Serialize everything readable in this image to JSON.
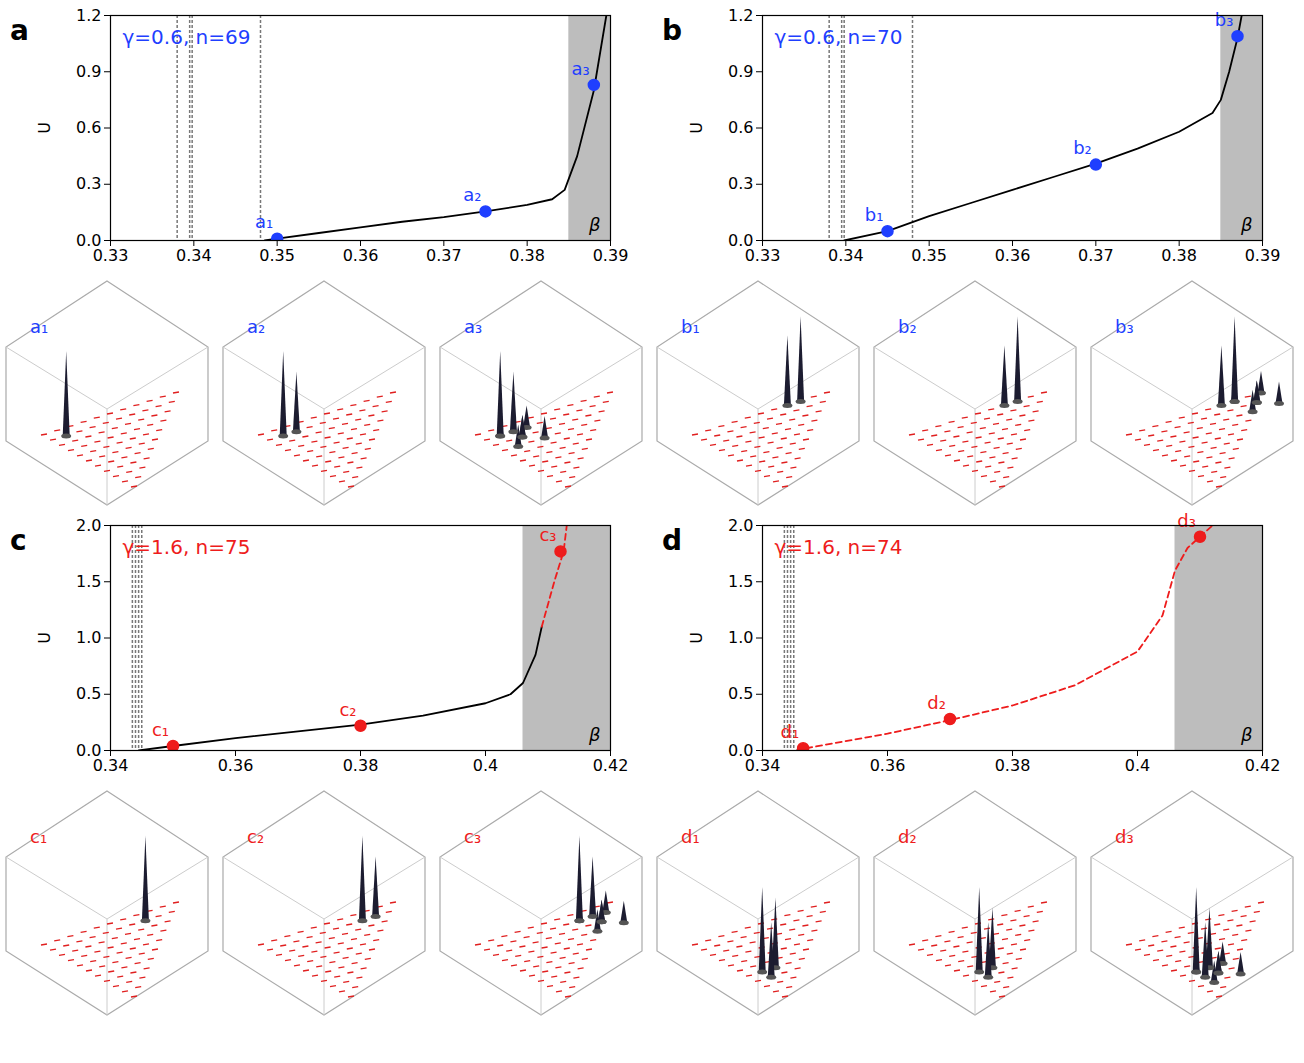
{
  "chart_data": [
    {
      "type": "line",
      "panel_label": "a",
      "title": "γ=0.6, n=69",
      "color": "#1f3fff",
      "ylabel": "U",
      "xlim": [
        0.33,
        0.39
      ],
      "xticks": [
        0.33,
        0.34,
        0.35,
        0.36,
        0.37,
        0.38,
        0.39
      ],
      "ylim": [
        0,
        1.2
      ],
      "yticks": [
        {
          "value": 0,
          "label": "0.0"
        },
        {
          "value": 0.3,
          "label": "0.3"
        },
        {
          "value": 0.6,
          "label": "0.6"
        },
        {
          "value": 0.9,
          "label": "0.9"
        },
        {
          "value": 1.2,
          "label": "1.2"
        }
      ],
      "vlines": [
        0.338,
        0.3395,
        0.3398,
        0.348
      ],
      "shaded": {
        "x": [
          0.385,
          0.39
        ],
        "label": "β"
      },
      "series": [
        {
          "color": "#000000",
          "line_style": "solid",
          "x": [
            0.3485,
            0.35,
            0.355,
            0.36,
            0.365,
            0.37,
            0.375,
            0.38,
            0.383,
            0.3845,
            0.386,
            0.388,
            0.3895
          ],
          "values": [
            0,
            0.01,
            0.04,
            0.07,
            0.1,
            0.125,
            0.155,
            0.19,
            0.22,
            0.27,
            0.45,
            0.8,
            1.2
          ]
        }
      ],
      "points": {
        "x": [
          0.35,
          0.375,
          0.388
        ],
        "values": [
          0.01,
          0.155,
          0.83
        ],
        "labels": [
          "a₁",
          "a₂",
          "a₃"
        ]
      },
      "inset_labels": [
        "a₁",
        "a₂",
        "a₃"
      ]
    },
    {
      "type": "line",
      "panel_label": "b",
      "title": "γ=0.6, n=70",
      "color": "#1f3fff",
      "ylabel": "U",
      "xlim": [
        0.33,
        0.39
      ],
      "xticks": [
        0.33,
        0.34,
        0.35,
        0.36,
        0.37,
        0.38,
        0.39
      ],
      "ylim": [
        0,
        1.2
      ],
      "yticks": [
        {
          "value": 0,
          "label": "0.0"
        },
        {
          "value": 0.3,
          "label": "0.3"
        },
        {
          "value": 0.6,
          "label": "0.6"
        },
        {
          "value": 0.9,
          "label": "0.9"
        },
        {
          "value": 1.2,
          "label": "1.2"
        }
      ],
      "vlines": [
        0.338,
        0.3395,
        0.3398,
        0.348
      ],
      "shaded": {
        "x": [
          0.385,
          0.39
        ],
        "label": "β"
      },
      "series": [
        {
          "color": "#000000",
          "line_style": "solid",
          "x": [
            0.3398,
            0.345,
            0.35,
            0.355,
            0.36,
            0.365,
            0.37,
            0.375,
            0.38,
            0.384,
            0.385,
            0.386,
            0.387,
            0.3875
          ],
          "values": [
            0,
            0.05,
            0.13,
            0.2,
            0.27,
            0.34,
            0.41,
            0.49,
            0.58,
            0.68,
            0.75,
            0.9,
            1.08,
            1.2
          ]
        }
      ],
      "points": {
        "x": [
          0.345,
          0.37,
          0.387
        ],
        "values": [
          0.05,
          0.405,
          1.09
        ],
        "labels": [
          "b₁",
          "b₂",
          "b₃"
        ]
      },
      "inset_labels": [
        "b₁",
        "b₂",
        "b₃"
      ]
    },
    {
      "type": "line",
      "panel_label": "c",
      "title": "γ=1.6, n=75",
      "color": "#ee1c1c",
      "ylabel": "U",
      "xlim": [
        0.34,
        0.42
      ],
      "xticks": [
        0.34,
        0.36,
        0.38,
        0.4,
        0.42
      ],
      "ylim": [
        0,
        2
      ],
      "yticks": [
        {
          "value": 0,
          "label": "0.0"
        },
        {
          "value": 0.5,
          "label": "0.5"
        },
        {
          "value": 1,
          "label": "1.0"
        },
        {
          "value": 1.5,
          "label": "1.5"
        },
        {
          "value": 2,
          "label": "2.0"
        }
      ],
      "vlines": [
        0.3435,
        0.344,
        0.3445,
        0.345
      ],
      "shaded": {
        "x": [
          0.406,
          0.42
        ],
        "label": "β"
      },
      "series": [
        {
          "color": "#000000",
          "line_style": "solid",
          "x": [
            0.3445,
            0.35,
            0.36,
            0.37,
            0.38,
            0.39,
            0.4,
            0.404,
            0.406,
            0.408,
            0.409
          ],
          "values": [
            0,
            0.04,
            0.11,
            0.17,
            0.23,
            0.31,
            0.42,
            0.5,
            0.6,
            0.85,
            1.1
          ]
        },
        {
          "color": "#ee1c1c",
          "line_style": "dashed",
          "x": [
            0.409,
            0.411,
            0.4125,
            0.413
          ],
          "values": [
            1.1,
            1.5,
            1.77,
            2.0
          ]
        }
      ],
      "points": {
        "x": [
          0.35,
          0.38,
          0.412
        ],
        "values": [
          0.04,
          0.22,
          1.77
        ],
        "labels": [
          "c₁",
          "c₂",
          "c₃"
        ]
      },
      "inset_labels": [
        "c₁",
        "c₂",
        "c₃"
      ]
    },
    {
      "type": "line",
      "panel_label": "d",
      "title": "γ=1.6, n=74",
      "color": "#ee1c1c",
      "ylabel": "U",
      "xlim": [
        0.34,
        0.42
      ],
      "xticks": [
        0.34,
        0.36,
        0.38,
        0.4,
        0.42
      ],
      "ylim": [
        0,
        2
      ],
      "yticks": [
        {
          "value": 0,
          "label": "0.0"
        },
        {
          "value": 0.5,
          "label": "0.5"
        },
        {
          "value": 1,
          "label": "1.0"
        },
        {
          "value": 1.5,
          "label": "1.5"
        },
        {
          "value": 2,
          "label": "2.0"
        }
      ],
      "vlines": [
        0.3435,
        0.344,
        0.3445,
        0.345
      ],
      "shaded": {
        "x": [
          0.406,
          0.42
        ],
        "label": "β"
      },
      "series": [
        {
          "color": "#000000",
          "line_style": "solid",
          "x": [
            0.3455,
            0.347
          ],
          "values": [
            0,
            0.02
          ]
        },
        {
          "color": "#ee1c1c",
          "line_style": "dashed",
          "x": [
            0.347,
            0.35,
            0.36,
            0.37,
            0.38,
            0.39,
            0.4,
            0.404,
            0.406,
            0.408,
            0.41,
            0.412
          ],
          "values": [
            0.02,
            0.05,
            0.15,
            0.27,
            0.4,
            0.58,
            0.88,
            1.2,
            1.6,
            1.8,
            1.9,
            2.0
          ]
        }
      ],
      "points": {
        "x": [
          0.3465,
          0.37,
          0.41
        ],
        "values": [
          0.02,
          0.28,
          1.9
        ],
        "labels": [
          "d₁",
          "d₂",
          "d₃"
        ]
      },
      "inset_labels": [
        "d₁",
        "d₂",
        "d₃"
      ]
    }
  ]
}
